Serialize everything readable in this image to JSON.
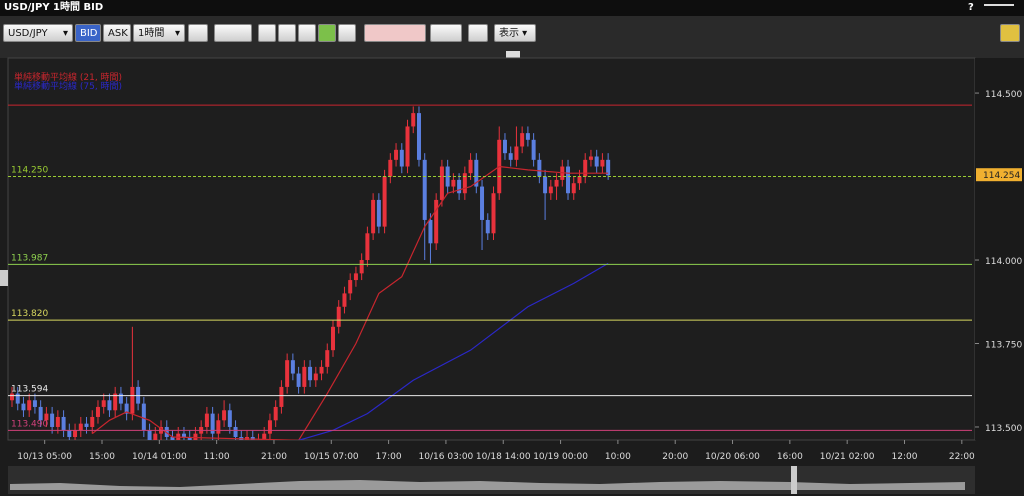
{
  "window": {
    "title": "USD/JPY 1時間 BID",
    "help": "?"
  },
  "toolbar": {
    "symbol": "USD/JPY",
    "bid": "BID",
    "ask": "ASK",
    "interval": "1時間",
    "display": "表示"
  },
  "chart_data": {
    "type": "candlestick",
    "xlim": [
      0,
      168
    ],
    "xticks": [
      {
        "value": 5.7,
        "label": "10/13 05:00"
      },
      {
        "value": 15.7,
        "label": "15:00"
      },
      {
        "value": 25.7,
        "label": "10/14 01:00"
      },
      {
        "value": 35.7,
        "label": "11:00"
      },
      {
        "value": 45.7,
        "label": "21:00"
      },
      {
        "value": 55.7,
        "label": "10/15 07:00"
      },
      {
        "value": 65.7,
        "label": "17:00"
      },
      {
        "value": 75.7,
        "label": "10/16 03:00"
      },
      {
        "value": 85.7,
        "label": "10/18 14:00"
      },
      {
        "value": 95.7,
        "label": "10/19 00:00"
      },
      {
        "value": 105.7,
        "label": "10:00"
      },
      {
        "value": 115.7,
        "label": "20:00"
      },
      {
        "value": 125.7,
        "label": "10/20 06:00"
      },
      {
        "value": 135.7,
        "label": "16:00"
      },
      {
        "value": 145.7,
        "label": "10/21 02:00"
      },
      {
        "value": 155.7,
        "label": "12:00"
      },
      {
        "value": 165.7,
        "label": "22:00"
      }
    ],
    "ylim": [
      113.461,
      114.605
    ],
    "yticks": [
      {
        "value": 113.5,
        "label": "113.500"
      },
      {
        "value": 113.75,
        "label": "113.750"
      },
      {
        "value": 114,
        "label": "114.000"
      },
      {
        "value": 114.5,
        "label": "114.500"
      }
    ],
    "up_color": "#e8323c",
    "down_color": "#5b7fe0",
    "open": [
      113.58,
      113.6,
      113.57,
      113.55,
      113.58,
      113.56,
      113.52,
      113.54,
      113.5,
      113.53,
      113.49,
      113.47,
      113.49,
      113.51,
      113.5,
      113.53,
      113.56,
      113.58,
      113.55,
      113.6,
      113.57,
      113.54,
      113.62,
      113.57,
      113.49,
      113.46,
      113.48,
      113.5,
      113.47,
      113.46,
      113.48,
      113.47,
      113.46,
      113.48,
      113.5,
      113.54,
      113.48,
      113.52,
      113.55,
      113.5,
      113.47,
      113.46,
      113.47,
      113.45,
      113.46,
      113.48,
      113.52,
      113.56,
      113.62,
      113.7,
      113.66,
      113.62,
      113.68,
      113.64,
      113.66,
      113.68,
      113.73,
      113.8,
      113.86,
      113.9,
      113.94,
      113.96,
      114.0,
      114.08,
      114.18,
      114.1,
      114.25,
      114.3,
      114.33,
      114.28,
      114.4,
      114.44,
      114.3,
      114.12,
      114.05,
      114.18,
      114.28,
      114.22,
      114.24,
      114.2,
      114.26,
      114.3,
      114.22,
      114.12,
      114.08,
      114.2,
      114.36,
      114.32,
      114.3,
      114.34,
      114.38,
      114.36,
      114.3,
      114.25,
      114.2,
      114.22,
      114.24,
      114.28,
      114.2,
      114.23,
      114.25,
      114.3,
      114.31,
      114.28,
      114.3
    ],
    "high": [
      113.62,
      113.62,
      113.59,
      113.6,
      113.6,
      113.58,
      113.56,
      113.56,
      113.55,
      113.55,
      113.51,
      113.51,
      113.53,
      113.53,
      113.55,
      113.58,
      113.6,
      113.6,
      113.62,
      113.62,
      113.59,
      113.8,
      113.64,
      113.59,
      113.51,
      113.5,
      113.52,
      113.52,
      113.49,
      113.5,
      113.5,
      113.49,
      113.5,
      113.52,
      113.56,
      113.56,
      113.54,
      113.58,
      113.57,
      113.52,
      113.49,
      113.49,
      113.49,
      113.48,
      113.5,
      113.54,
      113.58,
      113.64,
      113.72,
      113.72,
      113.68,
      113.7,
      113.7,
      113.68,
      113.7,
      113.75,
      113.82,
      113.88,
      113.92,
      113.96,
      113.98,
      114.02,
      114.1,
      114.2,
      114.2,
      114.27,
      114.32,
      114.35,
      114.35,
      114.42,
      114.46,
      114.46,
      114.32,
      114.14,
      114.2,
      114.3,
      114.3,
      114.26,
      114.26,
      114.28,
      114.32,
      114.32,
      114.24,
      114.14,
      114.22,
      114.4,
      114.38,
      114.34,
      114.4,
      114.4,
      114.4,
      114.38,
      114.32,
      114.27,
      114.24,
      114.26,
      114.3,
      114.3,
      114.25,
      114.27,
      114.32,
      114.33,
      114.33,
      114.32,
      114.32
    ],
    "low": [
      113.56,
      113.55,
      113.53,
      113.53,
      113.54,
      113.5,
      113.5,
      113.48,
      113.48,
      113.47,
      113.45,
      113.45,
      113.47,
      113.48,
      113.48,
      113.51,
      113.54,
      113.53,
      113.53,
      113.55,
      113.52,
      113.52,
      113.55,
      113.47,
      113.44,
      113.44,
      113.46,
      113.45,
      113.44,
      113.44,
      113.45,
      113.44,
      113.44,
      113.46,
      113.48,
      113.46,
      113.46,
      113.5,
      113.48,
      113.45,
      113.44,
      113.44,
      113.43,
      113.43,
      113.44,
      113.46,
      113.5,
      113.54,
      113.6,
      113.64,
      113.6,
      113.6,
      113.62,
      113.62,
      113.64,
      113.66,
      113.71,
      113.78,
      113.84,
      113.88,
      113.92,
      113.94,
      113.98,
      114.06,
      114.08,
      114.08,
      114.23,
      114.28,
      114.26,
      114.26,
      114.38,
      114.28,
      114.0,
      113.99,
      114.03,
      114.16,
      114.2,
      114.2,
      114.18,
      114.18,
      114.24,
      114.2,
      114.03,
      114.06,
      114.06,
      114.18,
      114.3,
      114.28,
      114.28,
      114.32,
      114.34,
      114.28,
      114.23,
      114.12,
      114.18,
      114.18,
      114.22,
      114.18,
      114.18,
      114.21,
      114.23,
      114.28,
      114.26,
      114.26,
      114.24
    ],
    "close": [
      113.6,
      113.57,
      113.55,
      113.58,
      113.56,
      113.52,
      113.54,
      113.5,
      113.53,
      113.49,
      113.47,
      113.49,
      113.51,
      113.5,
      113.53,
      113.56,
      113.58,
      113.55,
      113.6,
      113.57,
      113.54,
      113.62,
      113.57,
      113.49,
      113.46,
      113.48,
      113.5,
      113.47,
      113.46,
      113.48,
      113.47,
      113.46,
      113.48,
      113.5,
      113.54,
      113.48,
      113.52,
      113.55,
      113.5,
      113.47,
      113.46,
      113.47,
      113.45,
      113.46,
      113.48,
      113.52,
      113.56,
      113.62,
      113.7,
      113.66,
      113.62,
      113.68,
      113.64,
      113.66,
      113.68,
      113.73,
      113.8,
      113.86,
      113.9,
      113.94,
      113.96,
      114.0,
      114.08,
      114.18,
      114.1,
      114.25,
      114.3,
      114.33,
      114.28,
      114.4,
      114.44,
      114.3,
      114.12,
      114.05,
      114.18,
      114.28,
      114.22,
      114.24,
      114.2,
      114.26,
      114.3,
      114.22,
      114.12,
      114.08,
      114.2,
      114.36,
      114.32,
      114.3,
      114.34,
      114.38,
      114.36,
      114.3,
      114.25,
      114.2,
      114.22,
      114.24,
      114.28,
      114.2,
      114.23,
      114.25,
      114.3,
      114.31,
      114.28,
      114.3,
      114.254
    ],
    "series": [
      {
        "name": "単純移動平均線 (21, 時間)",
        "color": "#c8262e",
        "x": [
          14,
          17,
          20,
          24,
          28,
          50,
          55,
          60,
          64,
          68,
          72,
          76,
          80,
          85,
          90,
          97,
          104
        ],
        "values": [
          113.48,
          113.52,
          113.545,
          113.52,
          113.47,
          113.46,
          113.6,
          113.75,
          113.9,
          113.95,
          114.1,
          114.2,
          114.22,
          114.28,
          114.27,
          114.26,
          114.26
        ]
      },
      {
        "name": "単純移動平均線 (75, 時間)",
        "color": "#2b28c8",
        "x": [
          50,
          56,
          62,
          70,
          80,
          90,
          98,
          104
        ],
        "values": [
          113.46,
          113.49,
          113.54,
          113.64,
          113.73,
          113.86,
          113.93,
          113.99
        ]
      }
    ],
    "levels": [
      {
        "value": 114.464,
        "color": "#c8262e"
      },
      {
        "value": 114.25,
        "label": "114.250",
        "color": "#9acd32",
        "dashed": true
      },
      {
        "value": 113.987,
        "label": "113.987",
        "color": "#8fd14f"
      },
      {
        "value": 113.82,
        "label": "113.820",
        "color": "#d8d860"
      },
      {
        "value": 113.594,
        "label": "113.594",
        "color": "#e8e8e8"
      },
      {
        "value": 113.49,
        "label": "113.490",
        "color": "#d0407a"
      }
    ],
    "last_price": 114.254
  }
}
